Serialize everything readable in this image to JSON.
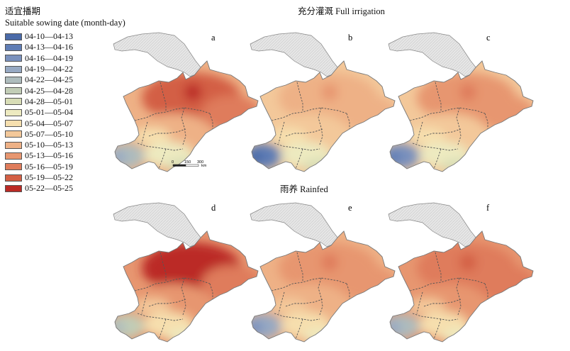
{
  "legend": {
    "title_cn": "适宜播期",
    "title_en": "Suitable sowing date (month-day)",
    "items": [
      {
        "label": "04-10—04-13",
        "color": "#4a6aa8"
      },
      {
        "label": "04-13—04-16",
        "color": "#5f7db5"
      },
      {
        "label": "04-16—04-19",
        "color": "#7a91bd"
      },
      {
        "label": "04-19—04-22",
        "color": "#97a9c3"
      },
      {
        "label": "04-22—04-25",
        "color": "#aebcbd"
      },
      {
        "label": "04-25—04-28",
        "color": "#c2cdb6"
      },
      {
        "label": "04-28—05-01",
        "color": "#d8ddb6"
      },
      {
        "label": "05-01—05-04",
        "color": "#edeac0"
      },
      {
        "label": "05-04—05-07",
        "color": "#f6dfae"
      },
      {
        "label": "05-07—05-10",
        "color": "#f3c89a"
      },
      {
        "label": "05-10—05-13",
        "color": "#eeb186"
      },
      {
        "label": "05-13—05-16",
        "color": "#e79670"
      },
      {
        "label": "05-16—05-19",
        "color": "#df7c5b"
      },
      {
        "label": "05-19—05-22",
        "color": "#d35f44"
      },
      {
        "label": "05-22—05-25",
        "color": "#bb2a25"
      }
    ]
  },
  "sections": {
    "full_irrigation": "充分灌溉 Full irrigation",
    "rainfed": "雨养 Rainfed"
  },
  "maps": [
    {
      "letter": "a",
      "group": "full_irrigation",
      "north": 13,
      "east": 12,
      "central": 10,
      "south": 7,
      "southwest": 4,
      "hot_spot": 14
    },
    {
      "letter": "b",
      "group": "full_irrigation",
      "north": 10,
      "east": 10,
      "central": 9,
      "south": 7,
      "southwest": 1,
      "hot_spot": 11
    },
    {
      "letter": "c",
      "group": "full_irrigation",
      "north": 11,
      "east": 11,
      "central": 9,
      "south": 7,
      "southwest": 2,
      "hot_spot": 12
    },
    {
      "letter": "d",
      "group": "rainfed",
      "north": 14,
      "east": 12,
      "central": 11,
      "south": 8,
      "southwest": 5,
      "hot_spot": 14
    },
    {
      "letter": "e",
      "group": "rainfed",
      "north": 11,
      "east": 11,
      "central": 10,
      "south": 8,
      "southwest": 3,
      "hot_spot": 12
    },
    {
      "letter": "f",
      "group": "rainfed",
      "north": 12,
      "east": 12,
      "central": 11,
      "south": 8,
      "southwest": 4,
      "hot_spot": 13
    }
  ],
  "scale_bar": {
    "ticks": [
      "0",
      "150",
      "300"
    ],
    "unit": "km"
  },
  "colors": {
    "mask": "#e6e6e6",
    "boundary": "#555555",
    "border": "#777777"
  }
}
